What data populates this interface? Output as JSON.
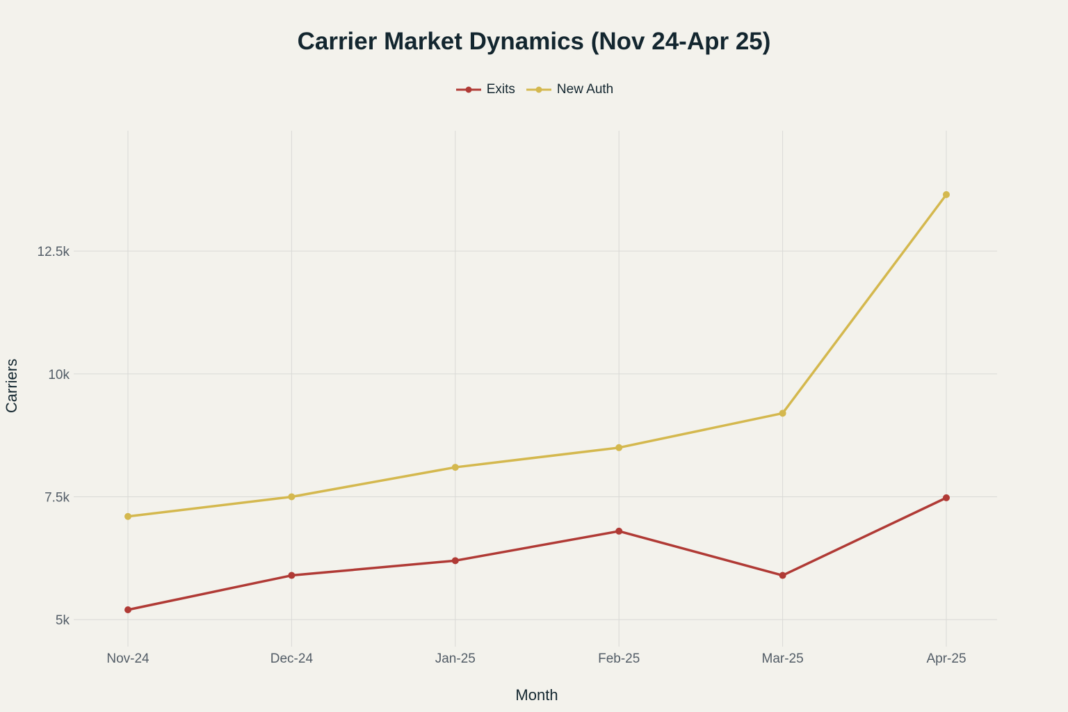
{
  "chart_data": {
    "type": "line",
    "title": "Carrier Market Dynamics (Nov 24-Apr 25)",
    "xlabel": "Month",
    "ylabel": "Carriers",
    "categories": [
      "Nov-24",
      "Dec-24",
      "Jan-25",
      "Feb-25",
      "Mar-25",
      "Apr-25"
    ],
    "series": [
      {
        "name": "Exits",
        "values": [
          5200,
          5900,
          6200,
          6800,
          5900,
          7480
        ],
        "color": "#b03a35"
      },
      {
        "name": "New Auth",
        "values": [
          7100,
          7500,
          8100,
          8500,
          9200,
          13650
        ],
        "color": "#d4b84e"
      }
    ],
    "ylim": [
      4450,
      14950
    ],
    "yticks": [
      5000,
      7500,
      10000,
      12500
    ],
    "ytick_labels": [
      "5k",
      "7.5k",
      "10k",
      "12.5k"
    ],
    "grid": true,
    "legend_position": "top-center",
    "colors": {
      "background": "#f3f2ec",
      "grid": "#d9d9d6",
      "text": "#13262f",
      "tick_text": "#525c66"
    }
  }
}
